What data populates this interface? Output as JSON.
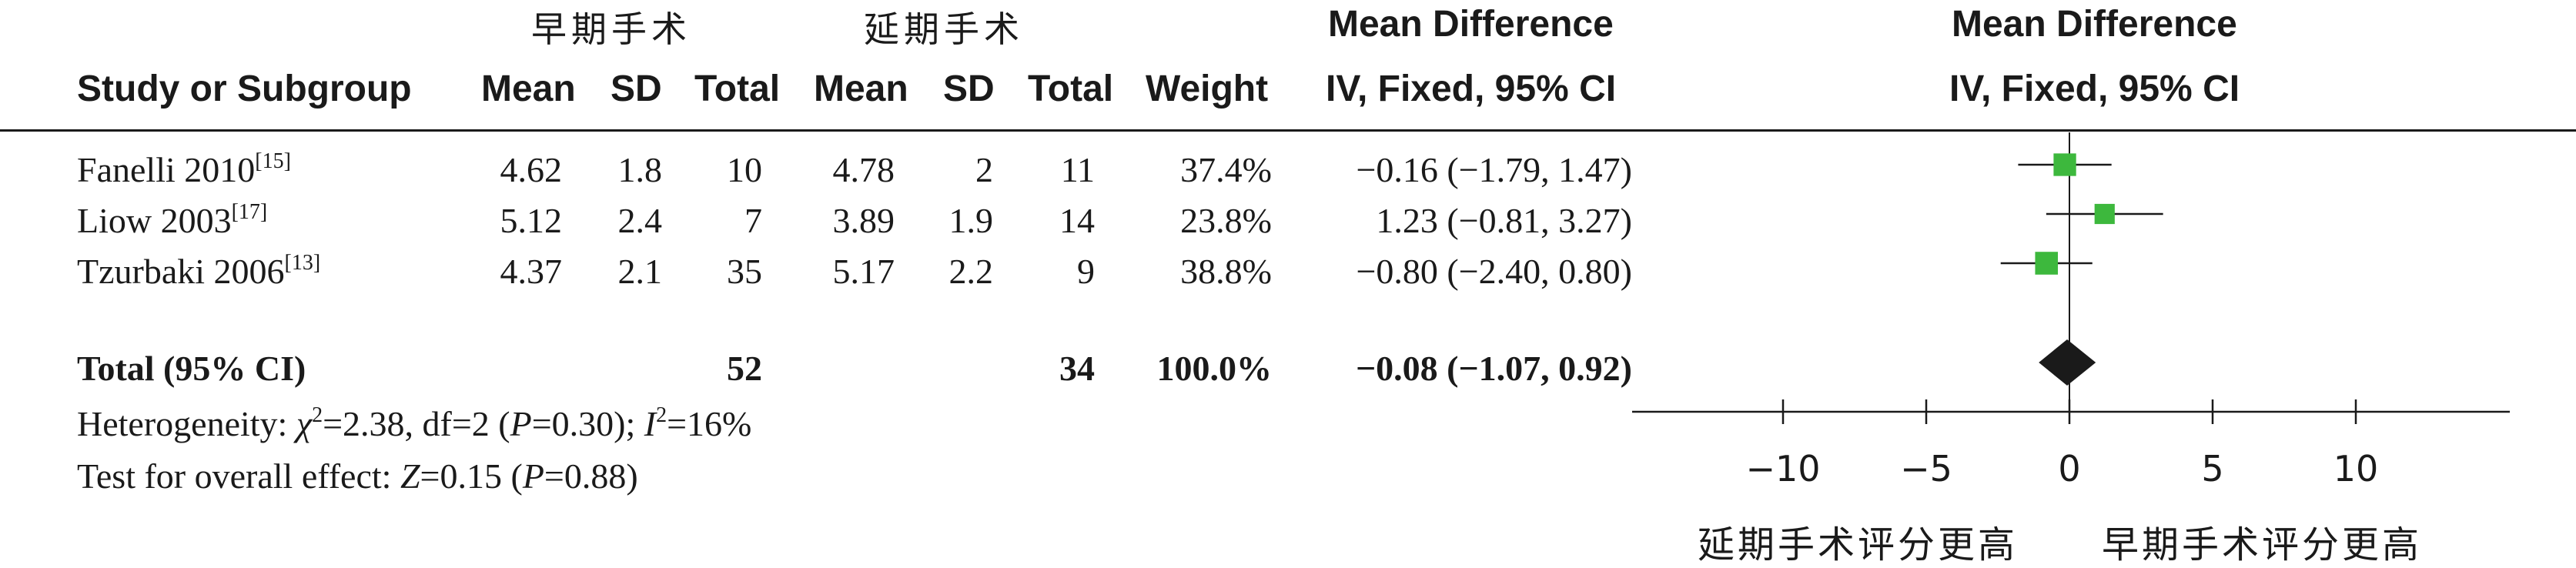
{
  "chart_data": {
    "type": "forest",
    "group_headers": {
      "early": "早期手术",
      "delayed": "延期手术"
    },
    "columns": {
      "study": "Study or Subgroup",
      "mean": "Mean",
      "sd": "SD",
      "total": "Total",
      "weight": "Weight",
      "md_title": "Mean Difference",
      "md_method": "IV, Fixed, 95% CI"
    },
    "studies": [
      {
        "name": "Fanelli 2010",
        "ref": "[15]",
        "e_mean": "4.62",
        "e_sd": "1.8",
        "e_total": "10",
        "d_mean": "4.78",
        "d_sd": "2",
        "d_total": "11",
        "weight": "37.4%",
        "ci_text": "−0.16 (−1.79, 1.47)",
        "md": -0.16,
        "lo": -1.79,
        "hi": 1.47,
        "w": 37.4
      },
      {
        "name": "Liow 2003",
        "ref": "[17]",
        "e_mean": "5.12",
        "e_sd": "2.4",
        "e_total": "7",
        "d_mean": "3.89",
        "d_sd": "1.9",
        "d_total": "14",
        "weight": "23.8%",
        "ci_text": "1.23 (−0.81, 3.27)",
        "md": 1.23,
        "lo": -0.81,
        "hi": 3.27,
        "w": 23.8
      },
      {
        "name": "Tzurbaki 2006",
        "ref": "[13]",
        "e_mean": "4.37",
        "e_sd": "2.1",
        "e_total": "35",
        "d_mean": "5.17",
        "d_sd": "2.2",
        "d_total": "9",
        "weight": "38.8%",
        "ci_text": "−0.80 (−2.40, 0.80)",
        "md": -0.8,
        "lo": -2.4,
        "hi": 0.8,
        "w": 38.8
      }
    ],
    "total": {
      "label": "Total (95% CI)",
      "e_total": "52",
      "d_total": "34",
      "weight": "100.0%",
      "ci_text": "−0.08 (−1.07, 0.92)",
      "md": -0.08,
      "lo": -1.07,
      "hi": 0.92
    },
    "heterogeneity": {
      "prefix": "Heterogeneity: ",
      "chi_sym": "χ",
      "chi_val": "=2.38, df=2 (",
      "p_sym": "P",
      "p_val": "=0.30); ",
      "i_sym": "I",
      "i_val": "=16%"
    },
    "overall": {
      "prefix": "Test for overall effect: ",
      "z_sym": "Z",
      "z_val": "=0.15 (",
      "p_sym": "P",
      "p_val": "=0.88)"
    },
    "axis": {
      "ticks": [
        -10,
        -5,
        0,
        5,
        10
      ],
      "tick_labels": [
        "−10",
        "−5",
        "0",
        "5",
        "10"
      ],
      "range": [
        -15,
        15
      ]
    },
    "favours": {
      "left": "延期手术评分更高",
      "right": "早期手术评分更高"
    },
    "colors": {
      "box": "#3db83d",
      "diamond": "#1a1a1a",
      "line": "#1a1a1a"
    }
  }
}
